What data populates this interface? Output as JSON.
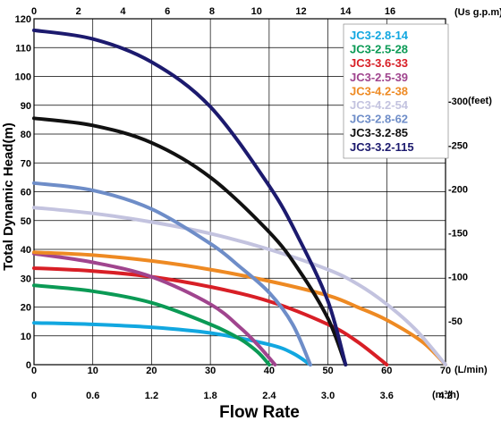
{
  "chart_data": {
    "type": "line",
    "ylabel": "Total Dynamic Head(m)",
    "xlabel": "Flow Rate",
    "x_unit": "(L/min)",
    "x_top_unit": "(Us g.p.m)",
    "x_bottom_unit": "(m³/h)",
    "y_right_unit": "(feet)",
    "xlim": [
      0,
      70
    ],
    "ylim": [
      0,
      120
    ],
    "x_ticks": [
      "0",
      "10",
      "20",
      "30",
      "40",
      "50",
      "60",
      "70"
    ],
    "x_ticks_values": [
      0,
      10,
      20,
      30,
      40,
      50,
      60,
      70
    ],
    "y_ticks": [
      "0",
      "10",
      "20",
      "30",
      "40",
      "50",
      "60",
      "70",
      "80",
      "90",
      "100",
      "110",
      "120"
    ],
    "y_ticks_values": [
      0,
      10,
      20,
      30,
      40,
      50,
      60,
      70,
      80,
      90,
      100,
      110,
      120
    ],
    "x_top_ticks": [
      "0",
      "2",
      "4",
      "6",
      "8",
      "10",
      "12",
      "14",
      "16"
    ],
    "x_top_ticks_values": [
      0,
      2,
      4,
      6,
      8,
      10,
      12,
      14,
      16
    ],
    "x_bottom_ticks": [
      "0",
      "0.6",
      "1.2",
      "1.8",
      "2.4",
      "3.0",
      "3.6",
      "4.2"
    ],
    "x_bottom_ticks_values": [
      0,
      0.6,
      1.2,
      1.8,
      2.4,
      3.0,
      3.6,
      4.2
    ],
    "y_right_ticks": [
      "-50",
      "-100",
      "-150",
      "-200",
      "-250",
      "-300"
    ],
    "y_right_ticks_values": [
      50,
      100,
      150,
      200,
      250,
      300
    ],
    "grid": true,
    "legend_position": "top-right",
    "series": [
      {
        "name": "JC3-2.8-14",
        "color": "#12a7e0",
        "x": [
          0,
          10,
          20,
          30,
          40,
          44,
          47
        ],
        "y": [
          14.5,
          14,
          13,
          11,
          7,
          4,
          0
        ]
      },
      {
        "name": "JC3-2.5-28",
        "color": "#0b9a55",
        "x": [
          0,
          10,
          20,
          30,
          35,
          38,
          40
        ],
        "y": [
          27.5,
          25.5,
          21.5,
          14,
          9,
          4.5,
          0
        ]
      },
      {
        "name": "JC3-3.6-33",
        "color": "#d81f26",
        "x": [
          0,
          10,
          20,
          30,
          40,
          50,
          55,
          60
        ],
        "y": [
          33.5,
          32.5,
          30.5,
          27,
          22,
          14,
          8,
          0
        ]
      },
      {
        "name": "JC3-2.5-39",
        "color": "#a0458e",
        "x": [
          0,
          10,
          20,
          30,
          35,
          38,
          41
        ],
        "y": [
          38.5,
          35.5,
          30.5,
          21,
          13,
          7,
          0
        ]
      },
      {
        "name": "JC3-4.2-38",
        "color": "#ee8a23",
        "x": [
          0,
          10,
          20,
          30,
          40,
          50,
          55,
          60,
          66,
          70
        ],
        "y": [
          39,
          38,
          36,
          33,
          29,
          24,
          20,
          15.5,
          8,
          0
        ]
      },
      {
        "name": "JC3-4.2-54",
        "color": "#c3c3df",
        "x": [
          0,
          10,
          20,
          30,
          40,
          50,
          55,
          60,
          65,
          70
        ],
        "y": [
          54.5,
          52.5,
          49.5,
          45.5,
          40,
          33,
          28,
          21,
          12,
          0
        ]
      },
      {
        "name": "JC3-2.8-62",
        "color": "#6e8dc8",
        "x": [
          0,
          10,
          20,
          30,
          35,
          40,
          44,
          47
        ],
        "y": [
          63,
          60.5,
          54,
          42,
          34,
          25,
          14,
          0
        ]
      },
      {
        "name": "JC3-3.2-85",
        "color": "#111111",
        "x": [
          0,
          10,
          20,
          30,
          40,
          45,
          50,
          53
        ],
        "y": [
          85.5,
          83,
          77,
          65,
          46,
          33,
          16,
          0
        ]
      },
      {
        "name": "JC3-3.2-115",
        "color": "#1c1a6e",
        "x": [
          0,
          10,
          20,
          30,
          40,
          45,
          50,
          53
        ],
        "y": [
          116,
          113,
          105,
          89.5,
          62,
          44,
          22,
          0
        ]
      }
    ]
  }
}
